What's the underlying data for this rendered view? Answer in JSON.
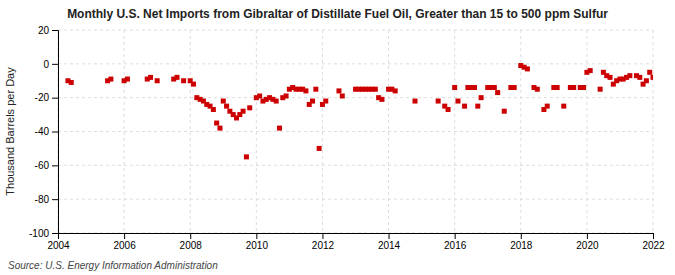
{
  "chart_data": {
    "type": "scatter",
    "title": "Monthly U.S. Net Imports from Gibraltar of Distillate Fuel Oil, Greater than 15 to 500 ppm Sulfur",
    "ylabel": "Thousand Barrels per Day",
    "source": "Source: U.S. Energy Information Administration",
    "color": "#cc0000",
    "marker": "square",
    "grid": true,
    "xlim": [
      2004,
      2022
    ],
    "ylim": [
      -100,
      20
    ],
    "xticks": [
      2004,
      2006,
      2008,
      2010,
      2012,
      2014,
      2016,
      2018,
      2020,
      2022
    ],
    "yticks": [
      -100,
      -80,
      -60,
      -40,
      -20,
      0,
      20
    ],
    "x": [
      2004.3,
      2004.4,
      2005.5,
      2005.6,
      2006.0,
      2006.1,
      2006.7,
      2006.8,
      2007.0,
      2007.5,
      2007.6,
      2007.8,
      2008.0,
      2008.1,
      2008.2,
      2008.3,
      2008.4,
      2008.5,
      2008.6,
      2008.7,
      2008.8,
      2008.9,
      2009.0,
      2009.1,
      2009.2,
      2009.3,
      2009.4,
      2009.5,
      2009.6,
      2009.7,
      2009.8,
      2010.0,
      2010.1,
      2010.2,
      2010.3,
      2010.4,
      2010.5,
      2010.6,
      2010.7,
      2010.8,
      2010.9,
      2011.0,
      2011.1,
      2011.2,
      2011.3,
      2011.4,
      2011.5,
      2011.6,
      2011.7,
      2011.8,
      2011.9,
      2012.0,
      2012.1,
      2012.5,
      2012.6,
      2013.0,
      2013.1,
      2013.2,
      2013.3,
      2013.4,
      2013.5,
      2013.6,
      2013.7,
      2013.8,
      2014.0,
      2014.1,
      2014.2,
      2014.8,
      2015.5,
      2015.7,
      2015.8,
      2016.0,
      2016.1,
      2016.3,
      2016.4,
      2016.5,
      2016.6,
      2016.7,
      2016.8,
      2017.0,
      2017.1,
      2017.2,
      2017.3,
      2017.5,
      2017.7,
      2017.8,
      2018.0,
      2018.1,
      2018.2,
      2018.4,
      2018.5,
      2018.7,
      2018.8,
      2019.0,
      2019.1,
      2019.3,
      2019.5,
      2019.6,
      2019.8,
      2019.9,
      2020.0,
      2020.1,
      2020.4,
      2020.5,
      2020.6,
      2020.7,
      2020.8,
      2020.9,
      2021.0,
      2021.1,
      2021.2,
      2021.3,
      2021.5,
      2021.6,
      2021.7,
      2021.8,
      2021.9,
      2022.0
    ],
    "values": [
      -10,
      -11,
      -10,
      -9,
      -10,
      -9,
      -9,
      -8,
      -10,
      -9,
      -8,
      -10,
      -10,
      -12,
      -20,
      -21,
      -22,
      -24,
      -25,
      -27,
      -35,
      -38,
      -22,
      -25,
      -28,
      -30,
      -32,
      -30,
      -28,
      -55,
      -26,
      -20,
      -19,
      -22,
      -21,
      -20,
      -21,
      -22,
      -38,
      -20,
      -19,
      -15,
      -14,
      -15,
      -15,
      -15,
      -16,
      -24,
      -22,
      -15,
      -50,
      -24,
      -22,
      -16,
      -19,
      -15,
      -15,
      -15,
      -15,
      -15,
      -15,
      -15,
      -20,
      -21,
      -15,
      -15,
      -16,
      -22,
      -22,
      -25,
      -27,
      -14,
      -22,
      -25,
      -14,
      -14,
      -14,
      -25,
      -20,
      -14,
      -14,
      -14,
      -17,
      -28,
      -14,
      -14,
      -1,
      -2,
      -3,
      -14,
      -15,
      -27,
      -25,
      -14,
      -14,
      -25,
      -14,
      -14,
      -14,
      -14,
      -5,
      -4,
      -15,
      -5,
      -7,
      -8,
      -12,
      -10,
      -9,
      -9,
      -8,
      -7,
      -7,
      -8,
      -12,
      -10,
      -5,
      -8
    ]
  }
}
